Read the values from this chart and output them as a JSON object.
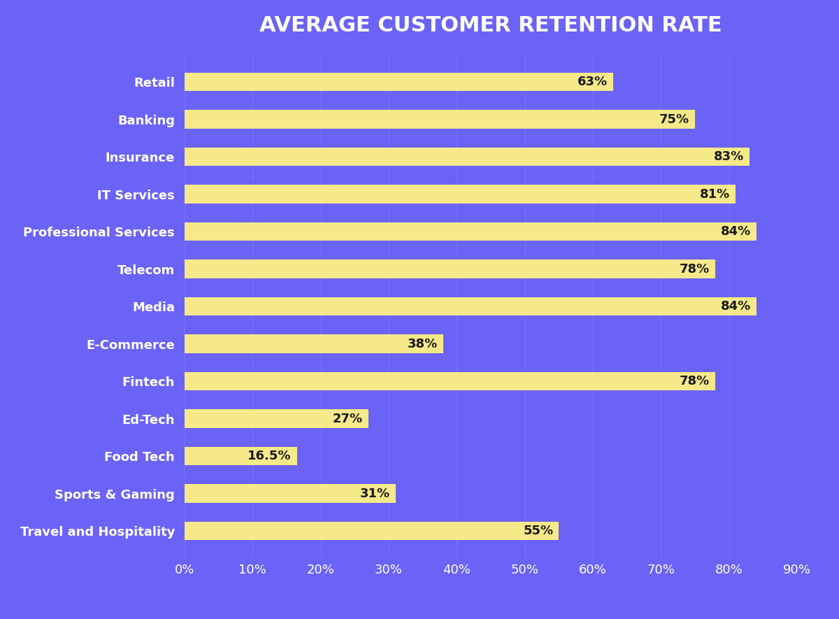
{
  "title": "AVERAGE CUSTOMER RETENTION RATE",
  "categories": [
    "Retail",
    "Banking",
    "Insurance",
    "IT Services",
    "Professional Services",
    "Telecom",
    "Media",
    "E-Commerce",
    "Fintech",
    "Ed-Tech",
    "Food Tech",
    "Sports & Gaming",
    "Travel and Hospitality"
  ],
  "values": [
    63,
    75,
    83,
    81,
    84,
    78,
    84,
    38,
    78,
    27,
    16.5,
    31,
    55
  ],
  "bar_color": "#F5E98A",
  "background_color": "#6B63F5",
  "text_color": "#FFFFFF",
  "label_color": "#1a1a1a",
  "title_color": "#FFFFFF",
  "xlim": [
    0,
    90
  ],
  "xticks": [
    0,
    10,
    20,
    30,
    40,
    50,
    60,
    70,
    80,
    90
  ],
  "grid_color": "#7B73FF",
  "bar_height": 0.5,
  "title_fontsize": 22,
  "tick_fontsize": 13,
  "label_fontsize": 13,
  "value_fontsize": 13
}
